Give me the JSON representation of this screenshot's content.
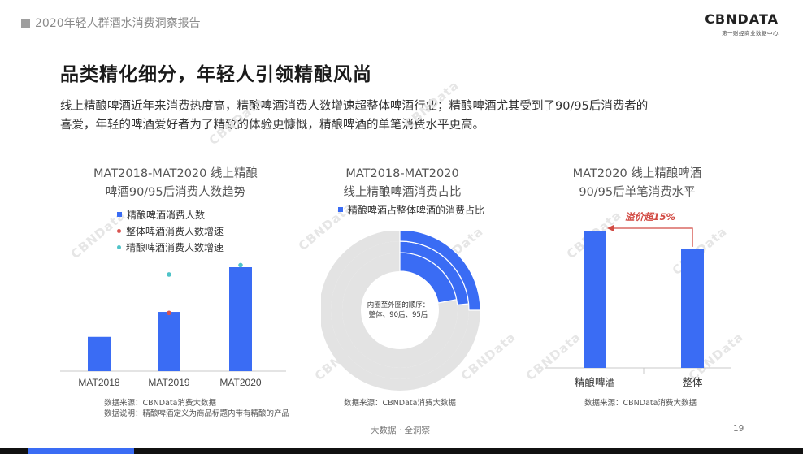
{
  "header": {
    "report_title": "2020年轻人群酒水消费洞察报告"
  },
  "logo": {
    "brand": "CBNDATA",
    "tagline": "第一财经商业数据中心"
  },
  "heading": "品类精化细分，年轻人引领精酿风尚",
  "intro_lines": [
    "线上精酿啤酒近年来消费热度高，精酿啤酒消费人数增速超整体啤酒行业；精酿啤酒尤其受到了90/95后消费者的",
    "喜爱，年轻的啤酒爱好者为了精致的体验更慷慨，精酿啤酒的单笔消费水平更高。"
  ],
  "watermark": "CBNData",
  "colors": {
    "blue": "#3a6cf4",
    "red": "#d9534f",
    "teal": "#4fc3c8",
    "ring_gray": "#e3e3e3",
    "arrow_red": "#d24a43"
  },
  "chart_data": [
    {
      "type": "bar",
      "title_lines": [
        "MAT2018-MAT2020 线上精酿",
        "啤酒90/95后消费人数趋势"
      ],
      "categories": [
        "MAT2018",
        "MAT2019",
        "MAT2020"
      ],
      "series": [
        {
          "name": "精酿啤酒消费人数",
          "kind": "bar",
          "values": [
            0.33,
            0.57,
            1.0
          ]
        },
        {
          "name": "整体啤酒消费人数增速",
          "kind": "point",
          "values": [
            null,
            0.56,
            null
          ]
        },
        {
          "name": "精酿啤酒消费人数增速",
          "kind": "point",
          "values": [
            null,
            0.93,
            1.02
          ]
        }
      ],
      "legend_position": "top-left",
      "source": "数据来源：CBNData消费大数据",
      "note": "数据说明：精酿啤酒定义为商品标题内带有精酿的产品"
    },
    {
      "type": "pie",
      "subtype": "concentric-donut",
      "title_lines": [
        "MAT2018-MAT2020",
        "线上精酿啤酒消费占比"
      ],
      "series_name": "精酿啤酒占整体啤酒的消费占比",
      "rings": [
        {
          "label": "整体",
          "value": 0.22
        },
        {
          "label": "90后",
          "value": 0.235
        },
        {
          "label": "95后",
          "value": 0.25
        }
      ],
      "center_text_lines": [
        "内圈至外圈的顺序：",
        "整体、90后、95后"
      ],
      "source": "数据来源：CBNData消费大数据"
    },
    {
      "type": "bar",
      "title_lines": [
        "MAT2020 线上精酿啤酒",
        "90/95后单笔消费水平"
      ],
      "categories": [
        "精酿啤酒",
        "整体"
      ],
      "values": [
        1.15,
        1.0
      ],
      "annotation": "溢价超15%",
      "source": "数据来源：CBNData消费大数据"
    }
  ],
  "footer": {
    "center": "大数据 · 全洞察",
    "page_number": "19"
  }
}
